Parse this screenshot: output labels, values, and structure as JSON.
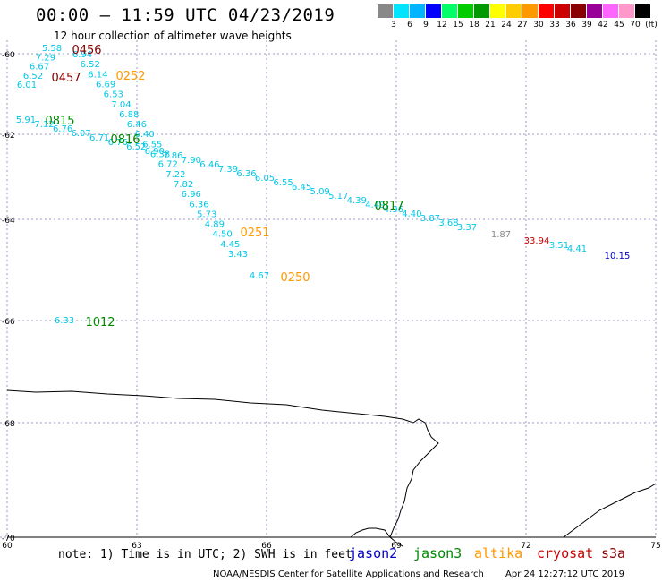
{
  "header": {
    "title": "00:00 – 11:59 UTC 04/23/2019",
    "subtitle": "12 hour collection of altimeter wave heights"
  },
  "legend": {
    "colors": [
      "#888888",
      "#00e5ff",
      "#00b4ff",
      "#0000ff",
      "#00ff66",
      "#00cc00",
      "#009900",
      "#ffff00",
      "#ffcc00",
      "#ff9900",
      "#ff0000",
      "#cc0000",
      "#880000",
      "#990099",
      "#ff66ff",
      "#ff99cc",
      "#000000"
    ],
    "labels": [
      "3",
      "6",
      "9",
      "12",
      "15",
      "18",
      "21",
      "24",
      "27",
      "30",
      "33",
      "36",
      "39",
      "42",
      "45",
      "70",
      "(ft)"
    ]
  },
  "axes": {
    "lat_labels": [
      "-60",
      "-62",
      "-64",
      "-66",
      "-68",
      "-70"
    ],
    "lon_labels": [
      "60",
      "63",
      "66",
      "69",
      "72",
      "75"
    ]
  },
  "tracks": [
    {
      "color": "#00c8e8",
      "values": [
        "5.58",
        "7.29",
        "6.67",
        "6.52",
        "6.01"
      ]
    },
    {
      "color": "#00c8e8",
      "values": [
        "6.94",
        "6.52",
        "6.14",
        "6.69",
        "6.53",
        "7.04",
        "6.88",
        "6.46",
        "6.40",
        "6.55",
        "6.38",
        "6.72",
        "7.22",
        "7.82",
        "6.96",
        "6.36",
        "5.73",
        "4.89",
        "4.50",
        "4.45",
        "3.43"
      ]
    },
    {
      "color": "#00c8e8",
      "values": [
        "5.91",
        "7.12",
        "6.76",
        "6.07",
        "6.71",
        "6.76",
        "6.52",
        "6.90",
        "7.86",
        "7.90",
        "6.46",
        "7.39",
        "6.36",
        "6.05",
        "6.55",
        "6.45",
        "5.09",
        "5.17",
        "4.39",
        "4.49",
        "4.96",
        "4.40",
        "3.87",
        "3.68",
        "3.37"
      ]
    },
    {
      "color": "#00c8e8",
      "values": [
        "4.67"
      ]
    },
    {
      "color": "#00c8e8",
      "values": [
        "6.33"
      ]
    },
    {
      "color": "#888888",
      "values": [
        "1.87"
      ]
    },
    {
      "color": "#cc0000",
      "values": [
        "33.94"
      ]
    },
    {
      "color": "#00c8e8",
      "values": [
        "3.51",
        "4.41"
      ]
    },
    {
      "color": "#0000cc",
      "values": [
        "10.15"
      ]
    }
  ],
  "pass_labels": [
    {
      "text": "0456",
      "color": "#880000"
    },
    {
      "text": "0457",
      "color": "#880000"
    },
    {
      "text": "0252",
      "color": "#ff9900"
    },
    {
      "text": "0815",
      "color": "#008800"
    },
    {
      "text": "0816",
      "color": "#008800"
    },
    {
      "text": "0817",
      "color": "#008800"
    },
    {
      "text": "0251",
      "color": "#ff9900"
    },
    {
      "text": "0250",
      "color": "#ff9900"
    },
    {
      "text": "1012",
      "color": "#008800"
    }
  ],
  "footer": {
    "note": "note: 1) Time is in UTC; 2) SWH is in feet",
    "satellites": [
      {
        "name": "jason2",
        "color": "#0000cc"
      },
      {
        "name": "jason3",
        "color": "#008800"
      },
      {
        "name": "altika",
        "color": "#ff9900"
      },
      {
        "name": "cryosat",
        "color": "#cc0000"
      },
      {
        "name": "s3a",
        "color": "#880000"
      }
    ],
    "credit": "NOAA/NESDIS Center for Satellite Applications and Research",
    "timestamp": "Apr 24 12:27:12 UTC 2019"
  }
}
